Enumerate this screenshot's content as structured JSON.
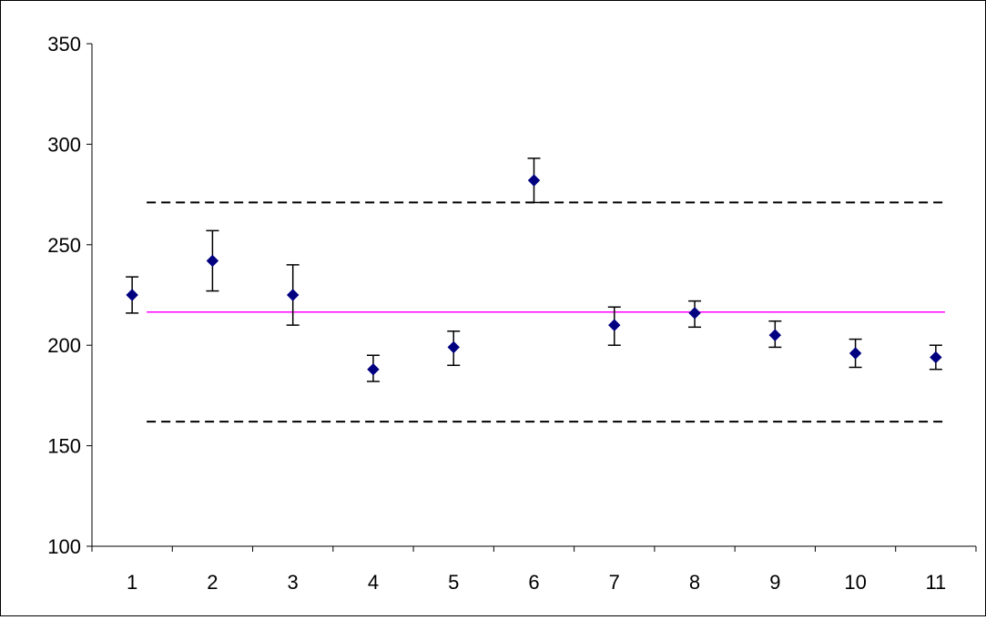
{
  "chart_data": {
    "type": "scatter",
    "title": "",
    "xlabel": "",
    "ylabel": "",
    "categories": [
      "1",
      "2",
      "3",
      "4",
      "5",
      "6",
      "7",
      "8",
      "9",
      "10",
      "11"
    ],
    "ylim": [
      100,
      350
    ],
    "yticks": [
      "100",
      "150",
      "200",
      "250",
      "300",
      "350"
    ],
    "grid": false,
    "legend": "none",
    "series": [
      {
        "values": [
          225,
          242,
          225,
          188,
          199,
          282,
          210,
          216,
          205,
          196,
          194
        ],
        "error_low": [
          216,
          227,
          210,
          182,
          190,
          271,
          200,
          209,
          199,
          189,
          188
        ],
        "error_high": [
          234,
          257,
          240,
          195,
          207,
          293,
          219,
          222,
          212,
          203,
          200
        ],
        "marker": "diamond",
        "color": "#000080"
      }
    ],
    "reference_lines": [
      {
        "y": 216.5,
        "style": "solid",
        "color": "#ff00ff"
      },
      {
        "y": 271,
        "style": "dashed",
        "color": "#000000"
      },
      {
        "y": 162,
        "style": "dashed",
        "color": "#000000"
      }
    ]
  }
}
